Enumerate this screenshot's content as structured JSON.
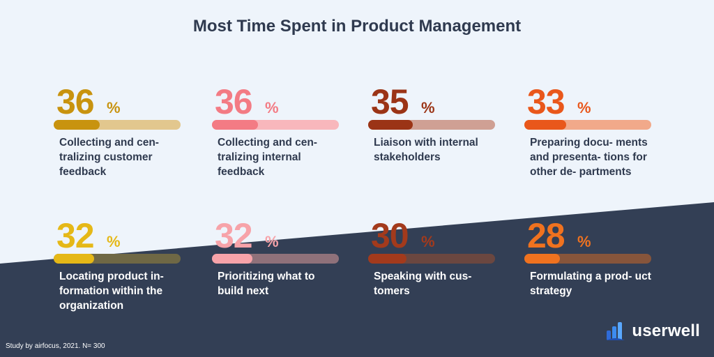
{
  "title": "Most Time Spent in Product Management",
  "footnote": "Study by airfocus, 2021. N= 300",
  "brand": {
    "name": "userwell",
    "logo_icon": "userwell-logo-icon"
  },
  "chart_data": {
    "type": "bar",
    "title": "Most Time Spent in Product Management",
    "unit": "%",
    "ylim": [
      0,
      100
    ],
    "categories": [
      "Collecting and cen-tralizing customer feedback",
      "Collecting and cen-tralizing internal feedback",
      "Liaison with internal stakeholders",
      "Preparing docu-ments and presenta-tions for other de-partments",
      "Locating product in-formation within the organization",
      "Prioritizing what to build next",
      "Speaking with cus-tomers",
      "Formulating a prod-uct strategy"
    ],
    "values": [
      36,
      36,
      35,
      33,
      32,
      32,
      30,
      28
    ]
  },
  "cards": [
    {
      "value": "36",
      "symbol": "%",
      "fraction": 0.36,
      "label": "Collecting and cen- tralizing customer feedback",
      "color": "#c8930f",
      "track": "#e2c78e",
      "text": "#2f3a4f"
    },
    {
      "value": "36",
      "symbol": "%",
      "fraction": 0.36,
      "label": "Collecting and cen- tralizing internal feedback",
      "color": "#f37b84",
      "track": "#f8b7bc",
      "text": "#2f3a4f"
    },
    {
      "value": "35",
      "symbol": "%",
      "fraction": 0.35,
      "label": "Liaison with internal stakeholders",
      "color": "#9b3416",
      "track": "#cfa094",
      "text": "#2f3a4f"
    },
    {
      "value": "33",
      "symbol": "%",
      "fraction": 0.33,
      "label": "Preparing docu- ments and presenta- tions for other de- partments",
      "color": "#e9571b",
      "track": "#f1a98a",
      "text": "#2f3a4f"
    },
    {
      "value": "32",
      "symbol": "%",
      "fraction": 0.32,
      "label": "Locating product in- formation within the organization",
      "color": "#e5b817",
      "track": "#6f6845",
      "text": "#ffffff"
    },
    {
      "value": "32",
      "symbol": "%",
      "fraction": 0.32,
      "label": "Prioritizing what to build next",
      "color": "#f7a3a9",
      "track": "#8f717a",
      "text": "#ffffff"
    },
    {
      "value": "30",
      "symbol": "%",
      "fraction": 0.3,
      "label": "Speaking with cus- tomers",
      "color": "#a33a1c",
      "track": "#6b4740",
      "text": "#ffffff"
    },
    {
      "value": "28",
      "symbol": "%",
      "fraction": 0.28,
      "label": "Formulating a prod- uct strategy",
      "color": "#f0721f",
      "track": "#87553b",
      "text": "#ffffff"
    }
  ],
  "colors": {
    "light_bg": "#eef4fb",
    "dark_bg": "#333f55"
  }
}
